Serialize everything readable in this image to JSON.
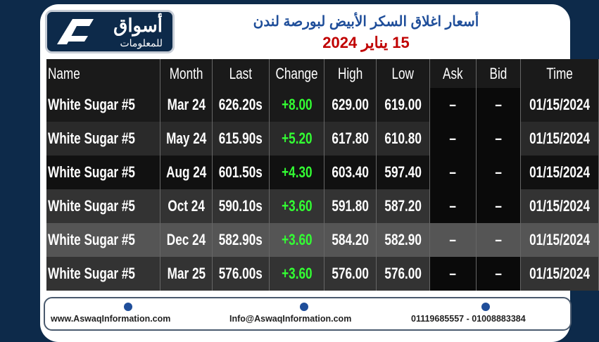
{
  "logo": {
    "name": "أسواق",
    "subtitle": "للمعلومات"
  },
  "header": {
    "title": "أسعار اغلاق السكر الأبيض لبورصة لندن",
    "date": "15 يناير 2024"
  },
  "table": {
    "headers": [
      "Name",
      "Month",
      "Last",
      "Change",
      "High",
      "Low",
      "Ask",
      "Bid",
      "Time"
    ],
    "rows": [
      [
        "White Sugar #5",
        "Mar 24",
        "626.20s",
        "+8.00",
        "629.00",
        "619.00",
        "–",
        "–",
        "01/15/2024"
      ],
      [
        "White Sugar #5",
        "May 24",
        "615.90s",
        "+5.20",
        "617.80",
        "610.80",
        "–",
        "–",
        "01/15/2024"
      ],
      [
        "White Sugar #5",
        "Aug 24",
        "601.50s",
        "+4.30",
        "603.40",
        "597.40",
        "–",
        "–",
        "01/15/2024"
      ],
      [
        "White Sugar #5",
        "Oct 24",
        "590.10s",
        "+3.60",
        "591.80",
        "587.20",
        "–",
        "–",
        "01/15/2024"
      ],
      [
        "White Sugar #5",
        "Dec 24",
        "582.90s",
        "+3.60",
        "584.20",
        "582.90",
        "–",
        "–",
        "01/15/2024"
      ],
      [
        "White Sugar #5",
        "Mar 25",
        "576.00s",
        "+3.60",
        "576.00",
        "576.00",
        "–",
        "–",
        "01/15/2024"
      ]
    ]
  },
  "footer": {
    "website": "www.AswaqInformation.com",
    "email": "Info@AswaqInformation.com",
    "phone": "01119685557 - 01008883384"
  }
}
